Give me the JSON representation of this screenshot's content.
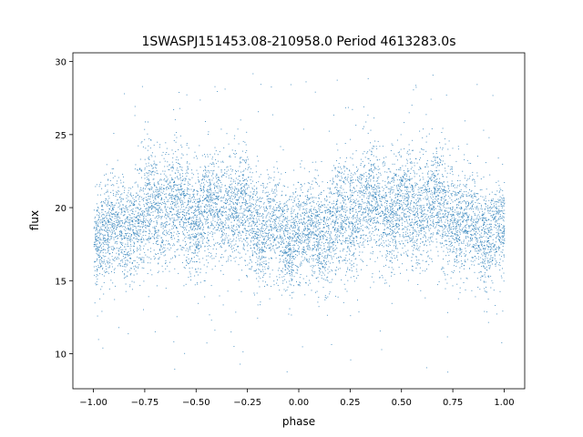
{
  "chart_data": {
    "type": "scatter",
    "title": "1SWASPJ151453.08-210958.0 Period 4613283.0s",
    "xlabel": "phase",
    "ylabel": "flux",
    "xlim": [
      -1.1,
      1.1
    ],
    "ylim": [
      7.6,
      30.6
    ],
    "x_ticks": [
      -1.0,
      -0.75,
      -0.5,
      -0.25,
      0.0,
      0.25,
      0.5,
      0.75,
      1.0
    ],
    "x_tick_labels": [
      "−1.00",
      "−0.75",
      "−0.50",
      "−0.25",
      "0.00",
      "0.25",
      "0.50",
      "0.75",
      "1.00"
    ],
    "y_ticks": [
      10,
      15,
      20,
      25,
      30
    ],
    "y_tick_labels": [
      "10",
      "15",
      "20",
      "25",
      "30"
    ],
    "grid": false,
    "legend": "none",
    "marker_color": "#1f77b4",
    "profile": {
      "phase": [
        -1.0,
        -0.95,
        -0.9,
        -0.85,
        -0.8,
        -0.75,
        -0.7,
        -0.65,
        -0.6,
        -0.55,
        -0.5,
        -0.45,
        -0.4,
        -0.35,
        -0.3,
        -0.25,
        -0.2,
        -0.15,
        -0.1,
        -0.05,
        0.0
      ],
      "center": [
        18.3,
        18.0,
        18.2,
        18.6,
        19.0,
        19.6,
        20.0,
        20.3,
        20.1,
        19.7,
        19.5,
        19.8,
        20.2,
        20.4,
        20.0,
        19.4,
        19.0,
        18.8,
        18.5,
        18.3,
        18.3
      ],
      "spread": [
        1.6,
        1.7,
        1.8,
        1.9,
        1.9,
        2.0,
        2.0,
        1.9,
        1.8,
        1.8,
        1.9,
        2.0,
        2.0,
        1.9,
        1.9,
        1.9,
        1.8,
        1.7,
        1.7,
        1.6,
        1.6
      ]
    },
    "point_count": 9000,
    "outlier_range": [
      8.6,
      29.4
    ]
  }
}
